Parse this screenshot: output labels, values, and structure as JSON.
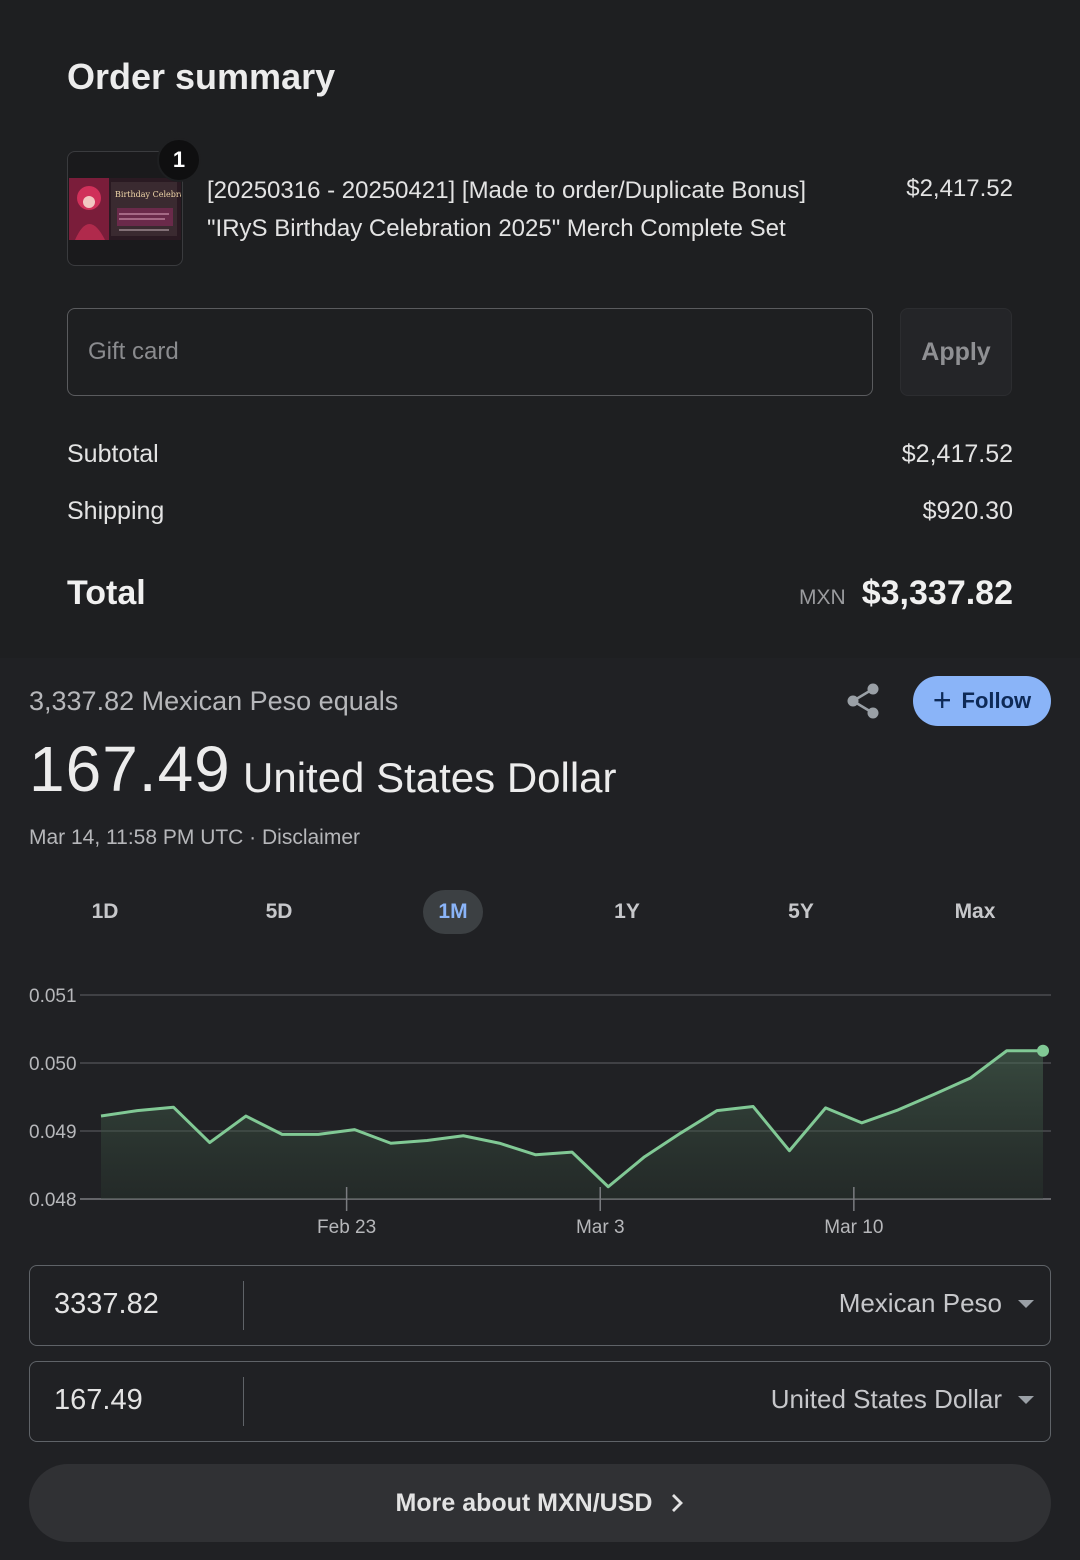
{
  "order": {
    "title": "Order summary",
    "item": {
      "quantity_badge": "1",
      "name_line1": "[20250316 - 20250421] [Made to order/Duplicate Bonus]",
      "name_line2": "\"IRyS Birthday Celebration 2025\" Merch Complete Set",
      "price": "$2,417.52",
      "thumbnail_text": "Birthday Celebration"
    },
    "gift_card": {
      "placeholder": "Gift card",
      "value": ""
    },
    "apply_label": "Apply",
    "subtotal": {
      "label": "Subtotal",
      "value": "$2,417.52"
    },
    "shipping": {
      "label": "Shipping",
      "value": "$920.30"
    },
    "total": {
      "label": "Total",
      "currency": "MXN",
      "value": "$3,337.82"
    }
  },
  "converter": {
    "equals_text": "3,337.82 Mexican Peso equals",
    "follow_label": "Follow",
    "result_amount": "167.49",
    "result_unit": "United States Dollar",
    "timestamp": "Mar 14, 11:58 PM UTC · Disclaimer",
    "tabs": [
      "1D",
      "5D",
      "1M",
      "1Y",
      "5Y",
      "Max"
    ],
    "active_tab": "1M",
    "from": {
      "amount": "3337.82",
      "currency": "Mexican Peso"
    },
    "to": {
      "amount": "167.49",
      "currency": "United States Dollar"
    },
    "more_label": "More about MXN/USD",
    "accent_color": "#8ab4f8",
    "line_color": "#81c995"
  },
  "chart_data": {
    "type": "area",
    "ylim": [
      0.048,
      0.051
    ],
    "y_ticks": [
      "0.051",
      "0.050",
      "0.049",
      "0.048"
    ],
    "x_tick_labels": [
      {
        "label": "Feb 23",
        "index": 7
      },
      {
        "label": "Mar 3",
        "index": 14
      },
      {
        "label": "Mar 10",
        "index": 21
      }
    ],
    "values": [
      0.04922,
      0.0493,
      0.04935,
      0.04883,
      0.04922,
      0.04895,
      0.04895,
      0.04902,
      0.04882,
      0.04886,
      0.04893,
      0.04882,
      0.04865,
      0.04869,
      0.04818,
      0.04862,
      0.04897,
      0.0493,
      0.04936,
      0.04871,
      0.04934,
      0.04912,
      0.04931,
      0.04954,
      0.04978,
      0.05018,
      0.05018
    ]
  }
}
